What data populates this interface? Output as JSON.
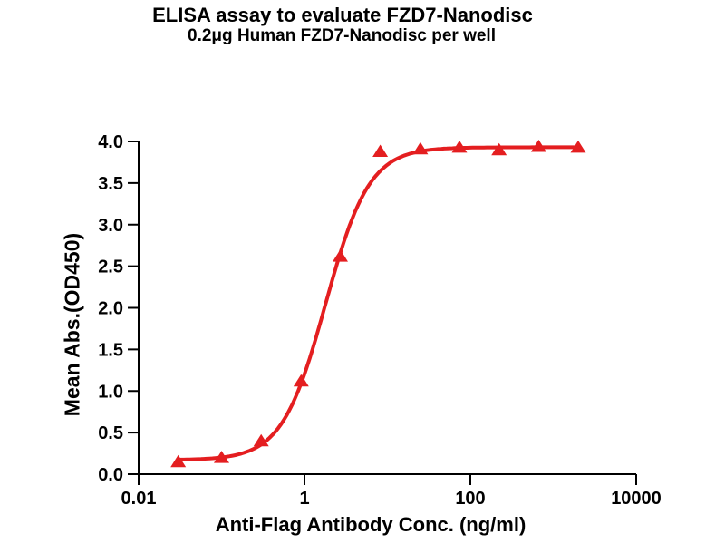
{
  "chart_data": {
    "type": "scatter",
    "title": "ELISA assay to evaluate FZD7-Nanodisc",
    "subtitle": "0.2μg Human FZD7-Nanodisc per well",
    "xlabel": "Anti-Flag Antibody Conc. (ng/ml)",
    "ylabel": "Mean Abs.(OD450)",
    "x_scale": "log10",
    "xlim": [
      0.01,
      10000
    ],
    "ylim": [
      0.0,
      4.0
    ],
    "x_ticks": [
      {
        "value": 0.01,
        "label": "0.01"
      },
      {
        "value": 1,
        "label": "1"
      },
      {
        "value": 100,
        "label": "100"
      },
      {
        "value": 10000,
        "label": "10000"
      }
    ],
    "y_ticks": [
      0.0,
      0.5,
      1.0,
      1.5,
      2.0,
      2.5,
      3.0,
      3.5,
      4.0
    ],
    "grid": false,
    "legend": "none",
    "axis_color": "#000000",
    "text_color": "#000000",
    "series": [
      {
        "name": "FZD7-Nanodisc",
        "marker": "triangle-up",
        "color": "#e41e20",
        "x": [
          0.03,
          0.1,
          0.3,
          0.91,
          2.7,
          8.2,
          25,
          74,
          222,
          667,
          2000
        ],
        "y": [
          0.15,
          0.2,
          0.4,
          1.12,
          2.62,
          3.88,
          3.91,
          3.93,
          3.9,
          3.94,
          3.93
        ]
      }
    ],
    "fit_curve": {
      "model": "4PL",
      "bottom": 0.17,
      "top": 3.93,
      "ec50": 1.8,
      "hill": 1.65
    }
  }
}
